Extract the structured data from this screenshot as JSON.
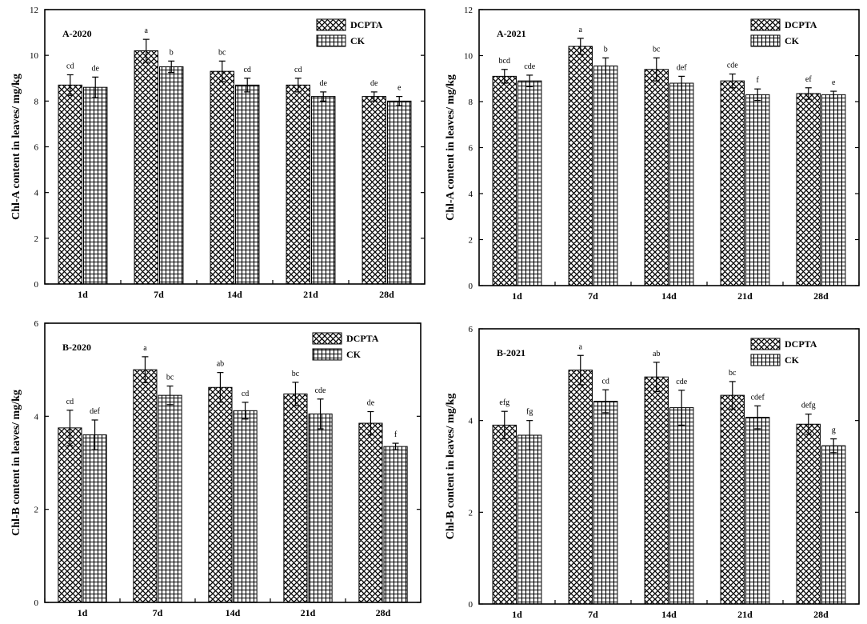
{
  "colors": {
    "axis": "#000000",
    "bar_fill": "#ffffff",
    "pattern": "#000000"
  },
  "chart_data": [
    {
      "type": "bar",
      "title": "A-2020",
      "ylabel": "Chl-A content in leaves/ mg/kg",
      "xlabel": "",
      "ylim": [
        0,
        12
      ],
      "yticks": [
        0,
        2,
        4,
        6,
        8,
        10,
        12
      ],
      "categories": [
        "1d",
        "7d",
        "14d",
        "21d",
        "28d"
      ],
      "legend_position": "top-right",
      "series": [
        {
          "name": "DCPTA",
          "values": [
            8.7,
            10.2,
            9.3,
            8.7,
            8.2
          ],
          "errors": [
            0.45,
            0.5,
            0.45,
            0.3,
            0.2
          ],
          "labels": [
            "cd",
            "a",
            "bc",
            "cd",
            "de"
          ]
        },
        {
          "name": "CK",
          "values": [
            8.6,
            9.5,
            8.7,
            8.2,
            8.0
          ],
          "errors": [
            0.45,
            0.25,
            0.3,
            0.2,
            0.2
          ],
          "labels": [
            "de",
            "b",
            "cd",
            "de",
            "e"
          ]
        }
      ]
    },
    {
      "type": "bar",
      "title": "A-2021",
      "ylabel": "Chl-A content in leaves/ mg/kg",
      "xlabel": "",
      "ylim": [
        0,
        12
      ],
      "yticks": [
        0,
        2,
        4,
        6,
        8,
        10,
        12
      ],
      "categories": [
        "1d",
        "7d",
        "14d",
        "21d",
        "28d"
      ],
      "legend_position": "top-right",
      "series": [
        {
          "name": "DCPTA",
          "values": [
            9.1,
            10.4,
            9.4,
            8.9,
            8.35
          ],
          "errors": [
            0.3,
            0.35,
            0.5,
            0.3,
            0.25
          ],
          "labels": [
            "bcd",
            "a",
            "bc",
            "cde",
            "ef"
          ]
        },
        {
          "name": "CK",
          "values": [
            8.9,
            9.55,
            8.8,
            8.3,
            8.3
          ],
          "errors": [
            0.25,
            0.35,
            0.3,
            0.25,
            0.15
          ],
          "labels": [
            "cde",
            "b",
            "def",
            "f",
            "e"
          ]
        }
      ]
    },
    {
      "type": "bar",
      "title": "B-2020",
      "ylabel": "Chl-B content in leaves/ mg/kg",
      "xlabel": "",
      "ylim": [
        0,
        6
      ],
      "yticks": [
        0,
        2,
        4,
        6
      ],
      "categories": [
        "1d",
        "7d",
        "14d",
        "21d",
        "28d"
      ],
      "legend_position": "top-right",
      "series": [
        {
          "name": "DCPTA",
          "values": [
            3.75,
            5.0,
            4.62,
            4.48,
            3.85
          ],
          "errors": [
            0.38,
            0.28,
            0.32,
            0.25,
            0.25
          ],
          "labels": [
            "cd",
            "a",
            "ab",
            "bc",
            "de"
          ]
        },
        {
          "name": "CK",
          "values": [
            3.6,
            4.45,
            4.12,
            4.05,
            3.35
          ],
          "errors": [
            0.32,
            0.2,
            0.18,
            0.32,
            0.07
          ],
          "labels": [
            "def",
            "bc",
            "cd",
            "cde",
            "f"
          ]
        }
      ]
    },
    {
      "type": "bar",
      "title": "B-2021",
      "ylabel": "Chl-B content in leaves/ mg/kg",
      "xlabel": "",
      "ylim": [
        0,
        6
      ],
      "yticks": [
        0,
        2,
        4,
        6
      ],
      "categories": [
        "1d",
        "7d",
        "14d",
        "21d",
        "28d"
      ],
      "legend_position": "top-right",
      "series": [
        {
          "name": "DCPTA",
          "values": [
            3.9,
            5.1,
            4.95,
            4.55,
            3.92
          ],
          "errors": [
            0.3,
            0.32,
            0.32,
            0.3,
            0.22
          ],
          "labels": [
            "efg",
            "a",
            "ab",
            "bc",
            "defg"
          ]
        },
        {
          "name": "CK",
          "values": [
            3.68,
            4.42,
            4.28,
            4.07,
            3.45
          ],
          "errors": [
            0.32,
            0.25,
            0.38,
            0.25,
            0.15
          ],
          "labels": [
            "fg",
            "cd",
            "cde",
            "cdef",
            "g"
          ]
        }
      ]
    }
  ]
}
